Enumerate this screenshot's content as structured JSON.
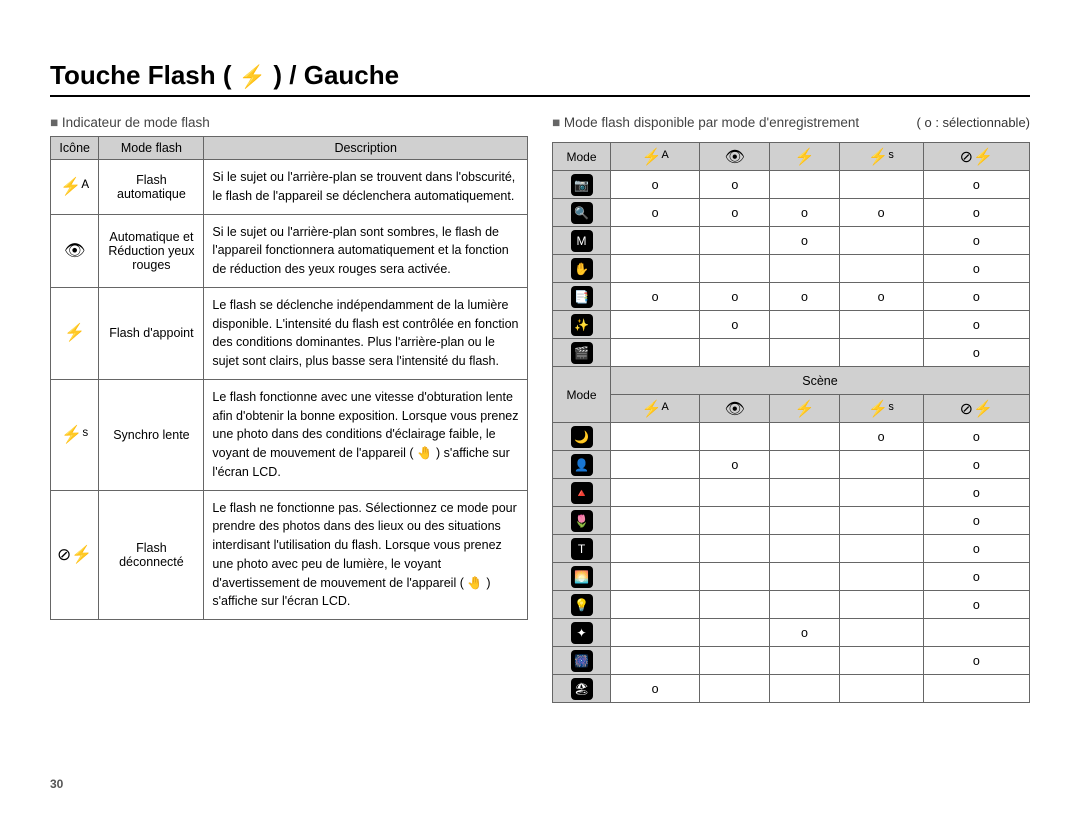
{
  "page_number": "30",
  "title_parts": {
    "before": "Touche Flash (",
    "after": ") / Gauche"
  },
  "title_flash_glyph": "⚡",
  "left": {
    "heading": "Indicateur de mode flash",
    "headers": {
      "icon": "Icône",
      "mode": "Mode flash",
      "desc": "Description"
    },
    "rows": [
      {
        "icon": "⚡ᴬ",
        "name": "Flash automatique",
        "desc": "Si le sujet ou l'arrière-plan se trouvent dans l'obscurité, le flash de l'appareil se déclenchera automatiquement."
      },
      {
        "icon": "👁",
        "name": "Automatique et Réduction yeux rouges",
        "desc": "Si le sujet ou l'arrière-plan sont sombres, le flash de l'appareil fonctionnera automatiquement et la fonction de réduction des yeux rouges sera activée."
      },
      {
        "icon": "⚡",
        "name": "Flash d'appoint",
        "desc": "Le flash se déclenche indépendamment de la lumière disponible. L'intensité du flash est contrôlée en fonction des conditions dominantes. Plus l'arrière-plan ou le sujet sont clairs, plus basse sera l'intensité du flash."
      },
      {
        "icon": "⚡ˢ",
        "name": "Synchro lente",
        "desc": "Le flash fonctionne avec une vitesse d'obturation lente afin d'obtenir la bonne exposition. Lorsque vous prenez une photo dans des conditions d'éclairage faible, le voyant de mouvement de l'appareil ( 🤚 ) s'affiche sur l'écran LCD."
      },
      {
        "icon": "⊘⚡",
        "name": "Flash déconnecté",
        "desc": "Le flash ne fonctionne pas. Sélectionnez ce mode pour prendre des photos dans des lieux ou des situations interdisant l'utilisation du flash. Lorsque vous prenez une photo avec peu de lumière, le voyant d'avertissement de mouvement de l'appareil ( 🤚 ) s'affiche sur l'écran LCD."
      }
    ]
  },
  "right": {
    "heading": "Mode flash disponible par mode d'enregistrement",
    "legend": "( o : sélectionnable)",
    "mark": "o",
    "mode_label": "Mode",
    "scene_label": "Scène",
    "col_icons": [
      "⚡ᴬ",
      "👁",
      "⚡",
      "⚡ˢ",
      "⊘⚡"
    ],
    "main_rows": [
      {
        "glyph": "📷",
        "cells": [
          "o",
          "o",
          "",
          "",
          "o"
        ]
      },
      {
        "glyph": "🔍",
        "cells": [
          "o",
          "o",
          "o",
          "o",
          "o"
        ]
      },
      {
        "glyph": "M",
        "cells": [
          "",
          "",
          "o",
          "",
          "o"
        ]
      },
      {
        "glyph": "✋",
        "cells": [
          "",
          "",
          "",
          "",
          "o"
        ]
      },
      {
        "glyph": "📑",
        "cells": [
          "o",
          "o",
          "o",
          "o",
          "o"
        ]
      },
      {
        "glyph": "✨",
        "cells": [
          "",
          "o",
          "",
          "",
          "o"
        ]
      },
      {
        "glyph": "🎬",
        "cells": [
          "",
          "",
          "",
          "",
          "o"
        ]
      }
    ],
    "scene_rows": [
      {
        "glyph": "🌙",
        "cells": [
          "",
          "",
          "",
          "o",
          "o"
        ]
      },
      {
        "glyph": "👤",
        "cells": [
          "",
          "o",
          "",
          "",
          "o"
        ]
      },
      {
        "glyph": "🔺",
        "cells": [
          "",
          "",
          "",
          "",
          "o"
        ]
      },
      {
        "glyph": "🌷",
        "cells": [
          "",
          "",
          "",
          "",
          "o"
        ]
      },
      {
        "glyph": "T",
        "cells": [
          "",
          "",
          "",
          "",
          "o"
        ]
      },
      {
        "glyph": "🌅",
        "cells": [
          "",
          "",
          "",
          "",
          "o"
        ]
      },
      {
        "glyph": "💡",
        "cells": [
          "",
          "",
          "",
          "",
          "o"
        ]
      },
      {
        "glyph": "✦",
        "cells": [
          "",
          "",
          "o",
          "",
          ""
        ]
      },
      {
        "glyph": "🎆",
        "cells": [
          "",
          "",
          "",
          "",
          "o"
        ]
      },
      {
        "glyph": "🏖",
        "cells": [
          "o",
          "",
          "",
          "",
          ""
        ]
      }
    ]
  },
  "colors": {
    "header_bg": "#d0d0d0",
    "border": "#666666",
    "text": "#000000",
    "muted": "#444444"
  }
}
